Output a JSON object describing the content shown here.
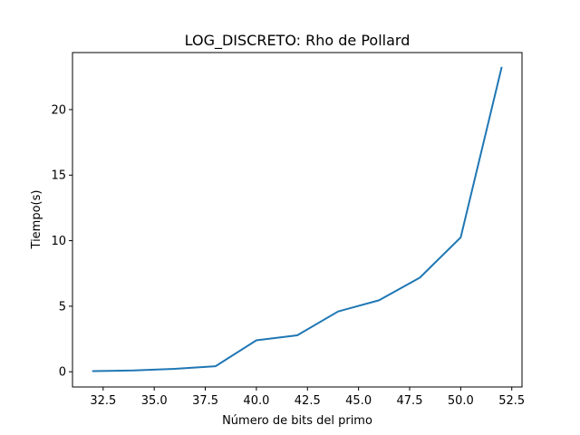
{
  "chart_data": {
    "type": "line",
    "title": "LOG_DISCRETO: Rho de Pollard",
    "xlabel": "Número de bits del primo",
    "ylabel": "Tiempo(s)",
    "xlim": [
      31.0,
      53.0
    ],
    "ylim": [
      -1.16,
      24.35
    ],
    "xticks": [
      32.5,
      35.0,
      37.5,
      40.0,
      42.5,
      45.0,
      47.5,
      50.0,
      52.5
    ],
    "xtick_labels": [
      "32.5",
      "35.0",
      "37.5",
      "40.0",
      "42.5",
      "45.0",
      "47.5",
      "50.0",
      "52.5"
    ],
    "yticks": [
      0,
      5,
      10,
      15,
      20
    ],
    "ytick_labels": [
      "0",
      "5",
      "10",
      "15",
      "20"
    ],
    "grid": false,
    "color": "#1f77b4",
    "series": [
      {
        "x": [
          32,
          34,
          36,
          38,
          40,
          42,
          44,
          46,
          48,
          50,
          52
        ],
        "y": [
          0.05,
          0.1,
          0.22,
          0.42,
          2.4,
          2.78,
          4.6,
          5.45,
          7.18,
          10.25,
          23.2
        ]
      }
    ]
  }
}
